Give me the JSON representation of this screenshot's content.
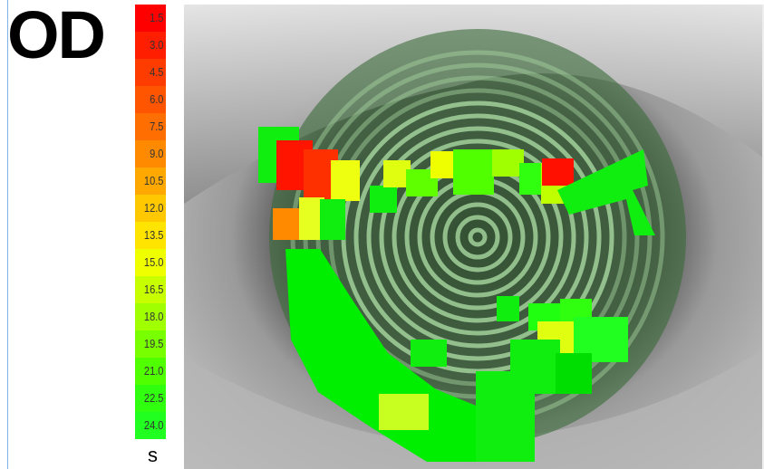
{
  "title": "OD",
  "legend": {
    "labels": [
      "1.5",
      "3.0",
      "4.5",
      "6.0",
      "7.5",
      "9.0",
      "10.5",
      "12.0",
      "13.5",
      "15.0",
      "16.5",
      "18.0",
      "19.5",
      "21.0",
      "22.5",
      "24.0"
    ],
    "colors": [
      "#ff0000",
      "#ff1e00",
      "#ff3c00",
      "#ff5400",
      "#ff6e00",
      "#ff8a00",
      "#ffa800",
      "#ffc800",
      "#ffe400",
      "#f0ff00",
      "#c8ff00",
      "#a0ff00",
      "#78ff00",
      "#50ff00",
      "#30ff10",
      "#20ff20"
    ],
    "unit": "s"
  }
}
